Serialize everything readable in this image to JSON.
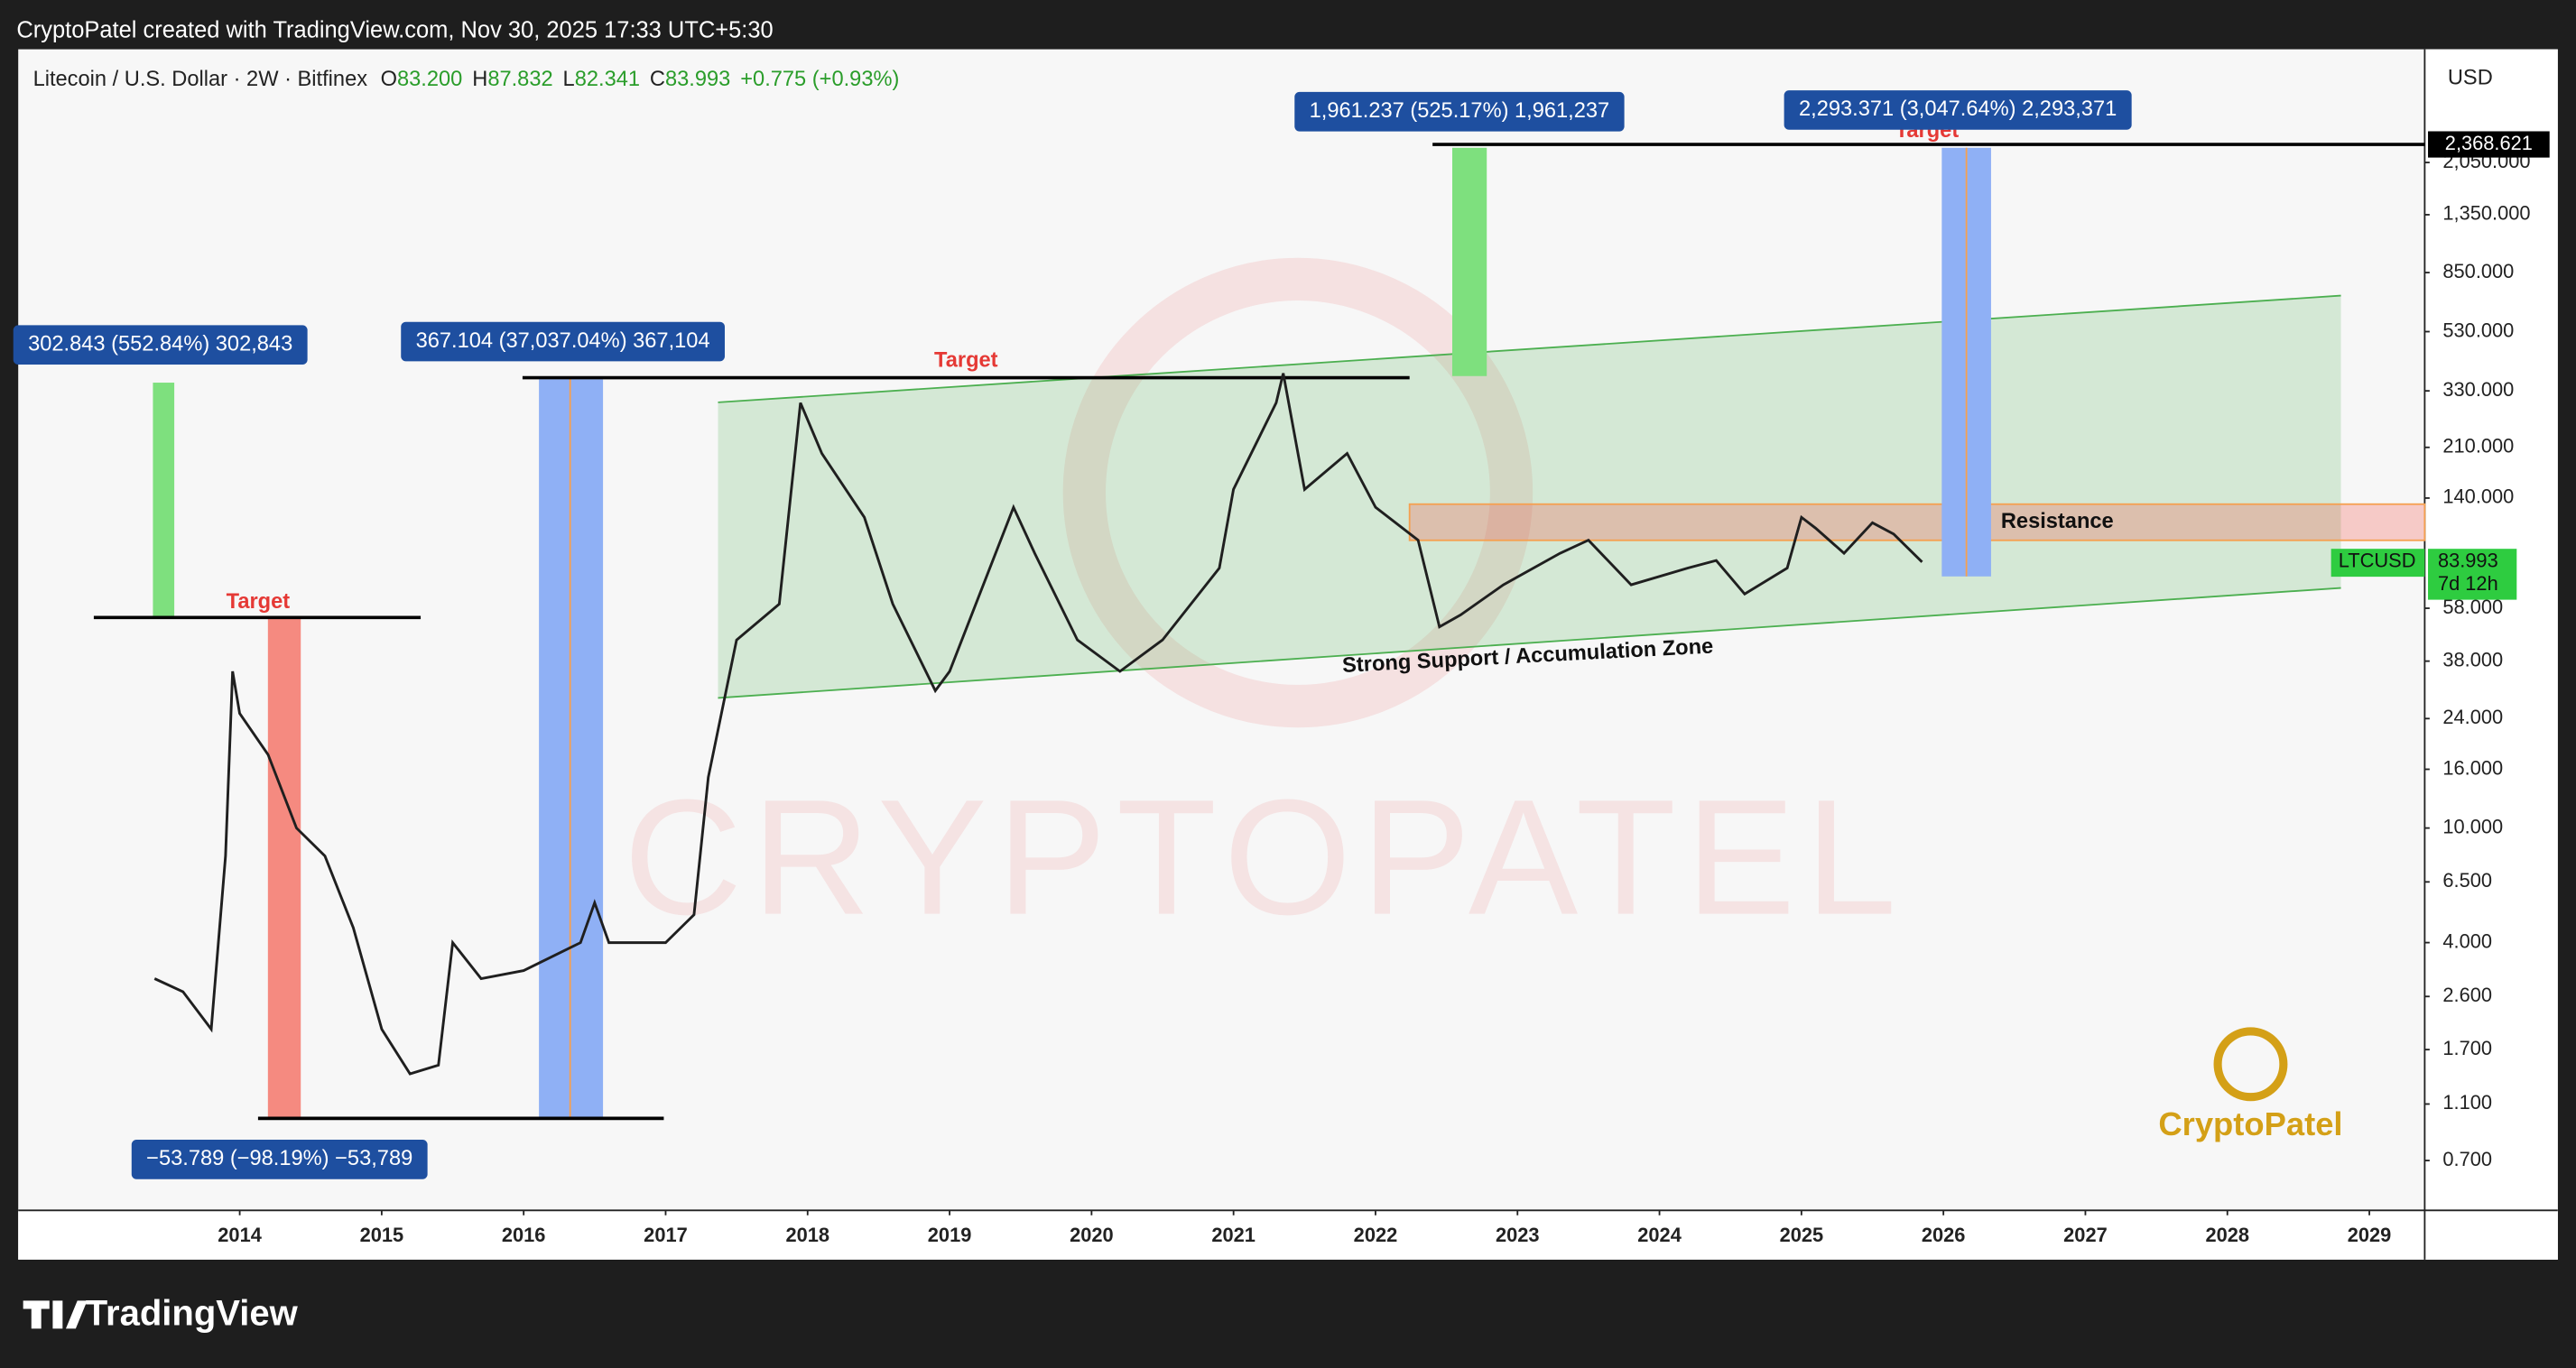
{
  "header": {
    "credit": "CryptoPatel created with TradingView.com, Nov 30, 2025 17:33 UTC+5:30"
  },
  "chart_data": {
    "type": "line",
    "title": "Litecoin / U.S. Dollar · 2W · Bitfinex",
    "ohlc": [
      {
        "label": "O",
        "value": "83.200"
      },
      {
        "label": "H",
        "value": "87.832"
      },
      {
        "label": "L",
        "value": "82.341"
      },
      {
        "label": "C",
        "value": "83.993"
      }
    ],
    "change": "+0.775 (+0.93%)",
    "currency": "USD",
    "symbol": "LTCUSD",
    "last_price": 83.993,
    "countdown": "7d 12h",
    "target_level": {
      "value": 2368.621,
      "label": "2,368.621"
    },
    "log_scale": true,
    "color": "#1f1f1f",
    "xlim": [
      2012.44,
      2029.39
    ],
    "xticks": [
      2014,
      2015,
      2016,
      2017,
      2018,
      2019,
      2020,
      2021,
      2022,
      2023,
      2024,
      2025,
      2026,
      2027,
      2028,
      2029
    ],
    "ylim": [
      0.47,
      5070
    ],
    "yticks": [
      {
        "value": 0.7,
        "label": "0.700"
      },
      {
        "value": 1.1,
        "label": "1.100"
      },
      {
        "value": 1.7,
        "label": "1.700"
      },
      {
        "value": 2.6,
        "label": "2.600"
      },
      {
        "value": 4,
        "label": "4.000"
      },
      {
        "value": 6.5,
        "label": "6.500"
      },
      {
        "value": 10,
        "label": "10.000"
      },
      {
        "value": 16,
        "label": "16.000"
      },
      {
        "value": 24,
        "label": "24.000"
      },
      {
        "value": 38,
        "label": "38.000"
      },
      {
        "value": 58,
        "label": "58.000"
      },
      {
        "value": 140,
        "label": "140.000"
      },
      {
        "value": 210,
        "label": "210.000"
      },
      {
        "value": 330,
        "label": "330.000"
      },
      {
        "value": 530,
        "label": "530.000"
      },
      {
        "value": 850,
        "label": "850.000"
      },
      {
        "value": 1350,
        "label": "1,350.000"
      },
      {
        "value": 2050,
        "label": "2,050.000"
      }
    ],
    "x": [
      2013.4,
      2013.6,
      2013.8,
      2013.9,
      2013.95,
      2014.0,
      2014.2,
      2014.4,
      2014.6,
      2014.8,
      2015.0,
      2015.2,
      2015.4,
      2015.5,
      2015.7,
      2016.0,
      2016.4,
      2016.5,
      2016.6,
      2017.0,
      2017.2,
      2017.3,
      2017.5,
      2017.8,
      2017.95,
      2018.1,
      2018.4,
      2018.6,
      2018.9,
      2019.0,
      2019.45,
      2019.6,
      2019.9,
      2020.2,
      2020.5,
      2020.9,
      2021.0,
      2021.3,
      2021.35,
      2021.5,
      2021.8,
      2022.0,
      2022.3,
      2022.45,
      2022.6,
      2022.9,
      2023.3,
      2023.5,
      2023.8,
      2024.2,
      2024.4,
      2024.6,
      2024.9,
      2025.0,
      2025.1,
      2025.3,
      2025.5,
      2025.65,
      2025.85
    ],
    "values": [
      3.0,
      2.7,
      2.0,
      8,
      35,
      25,
      18,
      10,
      8,
      4.5,
      2.0,
      1.4,
      1.5,
      4.0,
      3,
      3.2,
      4.0,
      5.5,
      4,
      4.0,
      5,
      15,
      45,
      60,
      300,
      200,
      120,
      60,
      30,
      35,
      130,
      90,
      45,
      35,
      45,
      80,
      150,
      300,
      380,
      150,
      200,
      130,
      100,
      50,
      55,
      70,
      90,
      100,
      70,
      80,
      85,
      65,
      80,
      120,
      110,
      90,
      115,
      105,
      83.993
    ],
    "annotations": {
      "targets": [
        "Target",
        "Target",
        "Target"
      ],
      "measures": [
        "302.843 (552.84%) 302,843",
        "367.104 (37,037.04%) 367,104",
        "−53.789 (−98.19%) −53,789",
        "1,961.237 (525.17%) 1,961,237",
        "2,293.371 (3,047.64%) 2,293,371"
      ],
      "resistance": "Resistance",
      "support": "Strong Support / Accumulation Zone"
    },
    "watermark": "CryptoPatel",
    "logo": "CryptoPatel"
  },
  "footer": {
    "brand": "TradingView"
  }
}
